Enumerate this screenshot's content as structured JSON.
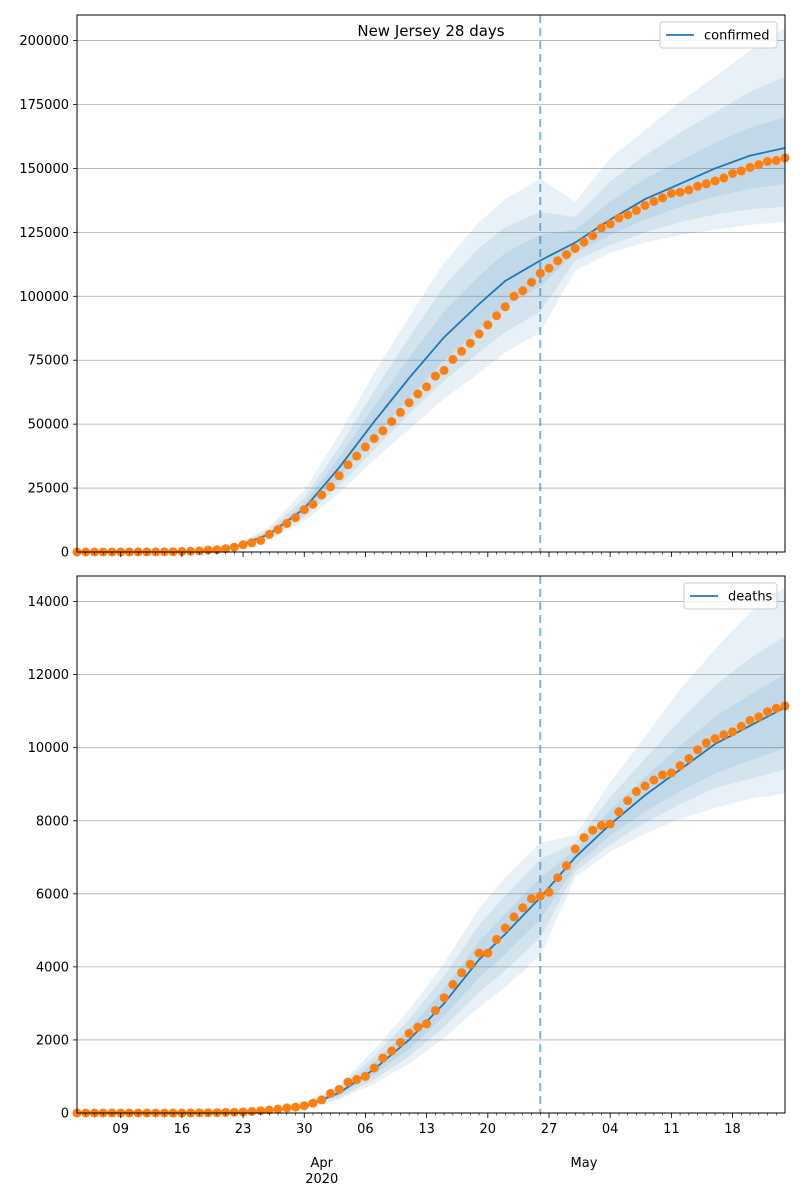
{
  "chart_data": [
    {
      "type": "line",
      "title": "New Jersey 28 days",
      "x_start": "2020-03-04",
      "x_end": "2020-05-24",
      "forecast_date": "2020-04-26",
      "ylim": [
        0,
        210000
      ],
      "y_ticks": [
        0,
        25000,
        50000,
        75000,
        100000,
        125000,
        150000,
        175000,
        200000
      ],
      "grid": "horizontal",
      "legend_position": "top-right",
      "series": [
        {
          "name": "confirmed",
          "color": "#1f77b4"
        }
      ],
      "model_dates": [
        "2020-03-18",
        "2020-03-22",
        "2020-03-26",
        "2020-03-30",
        "2020-04-03",
        "2020-04-07",
        "2020-04-11",
        "2020-04-15",
        "2020-04-19",
        "2020-04-22",
        "2020-04-26",
        "2020-04-30",
        "2020-05-04",
        "2020-05-08",
        "2020-05-12",
        "2020-05-16",
        "2020-05-20",
        "2020-05-24"
      ],
      "model_median": [
        500,
        1800,
        7000,
        17000,
        33000,
        51000,
        68000,
        84000,
        97000,
        106000,
        114000,
        121000,
        130000,
        138000,
        144000,
        150000,
        155000,
        158000
      ],
      "model_band_50": [
        [
          400,
          600
        ],
        [
          1500,
          2100
        ],
        [
          6200,
          7800
        ],
        [
          15000,
          19000
        ],
        [
          29000,
          37000
        ],
        [
          45000,
          57000
        ],
        [
          60000,
          76000
        ],
        [
          75000,
          94000
        ],
        [
          87000,
          108000
        ],
        [
          96000,
          117000
        ],
        [
          104000,
          124000
        ],
        [
          117000,
          126000
        ],
        [
          124000,
          137000
        ],
        [
          130000,
          146000
        ],
        [
          135000,
          153000
        ],
        [
          139000,
          160000
        ],
        [
          142000,
          166000
        ],
        [
          144000,
          170000
        ]
      ],
      "model_band_80": [
        [
          300,
          700
        ],
        [
          1300,
          2400
        ],
        [
          5500,
          8700
        ],
        [
          13500,
          21000
        ],
        [
          26000,
          41000
        ],
        [
          40000,
          63000
        ],
        [
          54000,
          84000
        ],
        [
          67000,
          104000
        ],
        [
          78000,
          119000
        ],
        [
          86000,
          127000
        ],
        [
          94000,
          133000
        ],
        [
          114000,
          131000
        ],
        [
          120000,
          145000
        ],
        [
          125000,
          155000
        ],
        [
          129000,
          164000
        ],
        [
          132000,
          172000
        ],
        [
          134000,
          180000
        ],
        [
          135000,
          186000
        ]
      ],
      "model_band_95": [
        [
          200,
          800
        ],
        [
          1100,
          2700
        ],
        [
          4800,
          9800
        ],
        [
          12000,
          24000
        ],
        [
          23000,
          46000
        ],
        [
          36000,
          70000
        ],
        [
          48000,
          92000
        ],
        [
          60000,
          113000
        ],
        [
          70000,
          129000
        ],
        [
          78000,
          138000
        ],
        [
          86000,
          146000
        ],
        [
          110000,
          137000
        ],
        [
          117000,
          154000
        ],
        [
          121000,
          165000
        ],
        [
          124000,
          176000
        ],
        [
          126000,
          186000
        ],
        [
          128000,
          196000
        ],
        [
          129000,
          205000
        ]
      ],
      "observed_dates": [
        "2020-03-04",
        "2020-03-05",
        "2020-03-06",
        "2020-03-07",
        "2020-03-08",
        "2020-03-09",
        "2020-03-10",
        "2020-03-11",
        "2020-03-12",
        "2020-03-13",
        "2020-03-14",
        "2020-03-15",
        "2020-03-16",
        "2020-03-17",
        "2020-03-18",
        "2020-03-19",
        "2020-03-20",
        "2020-03-21",
        "2020-03-22",
        "2020-03-23",
        "2020-03-24",
        "2020-03-25",
        "2020-03-26",
        "2020-03-27",
        "2020-03-28",
        "2020-03-29",
        "2020-03-30",
        "2020-03-31",
        "2020-04-01",
        "2020-04-02",
        "2020-04-03",
        "2020-04-04",
        "2020-04-05",
        "2020-04-06",
        "2020-04-07",
        "2020-04-08",
        "2020-04-09",
        "2020-04-10",
        "2020-04-11",
        "2020-04-12",
        "2020-04-13",
        "2020-04-14",
        "2020-04-15",
        "2020-04-16",
        "2020-04-17",
        "2020-04-18",
        "2020-04-19",
        "2020-04-20",
        "2020-04-21",
        "2020-04-22",
        "2020-04-23",
        "2020-04-24",
        "2020-04-25",
        "2020-04-26",
        "2020-04-27",
        "2020-04-28",
        "2020-04-29",
        "2020-04-30",
        "2020-05-01",
        "2020-05-02",
        "2020-05-03",
        "2020-05-04",
        "2020-05-05",
        "2020-05-06",
        "2020-05-07",
        "2020-05-08",
        "2020-05-09",
        "2020-05-10",
        "2020-05-11",
        "2020-05-12",
        "2020-05-13",
        "2020-05-14",
        "2020-05-15",
        "2020-05-16",
        "2020-05-17",
        "2020-05-18",
        "2020-05-19",
        "2020-05-20",
        "2020-05-21",
        "2020-05-22",
        "2020-05-23",
        "2020-05-24"
      ],
      "observed_values": [
        0,
        0,
        0,
        0,
        5,
        10,
        15,
        25,
        30,
        50,
        70,
        100,
        180,
        270,
        430,
        740,
        900,
        1300,
        1900,
        2800,
        3600,
        4500,
        6900,
        8800,
        11200,
        13400,
        16600,
        18700,
        22300,
        25500,
        29800,
        34100,
        37500,
        41100,
        44400,
        47400,
        51000,
        54600,
        58400,
        61800,
        64600,
        68800,
        71000,
        75300,
        78500,
        81600,
        85300,
        88800,
        92400,
        95900,
        100000,
        102200,
        105500,
        109000,
        111000,
        113900,
        116300,
        118700,
        121200,
        123700,
        126700,
        128300,
        130600,
        131900,
        133600,
        135500,
        137100,
        138500,
        140200,
        140700,
        141600,
        143000,
        144000,
        145100,
        146300,
        148000,
        149000,
        150400,
        151500,
        152700,
        153100,
        154100
      ]
    },
    {
      "type": "line",
      "x_start": "2020-03-04",
      "x_end": "2020-05-24",
      "forecast_date": "2020-04-26",
      "ylim": [
        0,
        14700
      ],
      "y_ticks": [
        0,
        2000,
        4000,
        6000,
        8000,
        10000,
        12000,
        14000
      ],
      "grid": "horizontal",
      "legend_position": "top-right",
      "series": [
        {
          "name": "deaths",
          "color": "#1f77b4"
        }
      ],
      "model_dates": [
        "2020-03-18",
        "2020-03-22",
        "2020-03-26",
        "2020-03-30",
        "2020-04-03",
        "2020-04-07",
        "2020-04-11",
        "2020-04-15",
        "2020-04-19",
        "2020-04-22",
        "2020-04-26",
        "2020-04-30",
        "2020-05-04",
        "2020-05-08",
        "2020-05-12",
        "2020-05-16",
        "2020-05-20",
        "2020-05-24"
      ],
      "model_median": [
        5,
        15,
        50,
        180,
        550,
        1200,
        2000,
        3000,
        4200,
        4900,
        5900,
        7000,
        7900,
        8700,
        9400,
        10100,
        10600,
        11100
      ],
      "model_band_50": [
        [
          4,
          7
        ],
        [
          12,
          18
        ],
        [
          40,
          60
        ],
        [
          160,
          210
        ],
        [
          480,
          620
        ],
        [
          1050,
          1400
        ],
        [
          1750,
          2300
        ],
        [
          2650,
          3400
        ],
        [
          3700,
          4700
        ],
        [
          4350,
          5450
        ],
        [
          5300,
          6450
        ],
        [
          6750,
          7200
        ],
        [
          7600,
          8300
        ],
        [
          8250,
          9200
        ],
        [
          8800,
          10050
        ],
        [
          9300,
          10850
        ],
        [
          9650,
          11450
        ],
        [
          10000,
          12000
        ]
      ],
      "model_band_80": [
        [
          3,
          9
        ],
        [
          10,
          22
        ],
        [
          33,
          72
        ],
        [
          140,
          245
        ],
        [
          420,
          700
        ],
        [
          920,
          1560
        ],
        [
          1550,
          2560
        ],
        [
          2350,
          3750
        ],
        [
          3300,
          5150
        ],
        [
          3900,
          5950
        ],
        [
          4800,
          6950
        ],
        [
          6600,
          7400
        ],
        [
          7350,
          8650
        ],
        [
          7950,
          9700
        ],
        [
          8450,
          10750
        ],
        [
          8900,
          11700
        ],
        [
          9150,
          12450
        ],
        [
          9400,
          13050
        ]
      ],
      "model_band_95": [
        [
          2,
          11
        ],
        [
          8,
          26
        ],
        [
          28,
          85
        ],
        [
          120,
          280
        ],
        [
          370,
          780
        ],
        [
          800,
          1730
        ],
        [
          1350,
          2830
        ],
        [
          2050,
          4100
        ],
        [
          2900,
          5600
        ],
        [
          3450,
          6450
        ],
        [
          4300,
          7400
        ],
        [
          6450,
          7600
        ],
        [
          7150,
          9050
        ],
        [
          7650,
          10300
        ],
        [
          8050,
          11600
        ],
        [
          8350,
          12700
        ],
        [
          8600,
          13700
        ],
        [
          8750,
          14400
        ]
      ],
      "observed_dates": [
        "2020-03-04",
        "2020-03-05",
        "2020-03-06",
        "2020-03-07",
        "2020-03-08",
        "2020-03-09",
        "2020-03-10",
        "2020-03-11",
        "2020-03-12",
        "2020-03-13",
        "2020-03-14",
        "2020-03-15",
        "2020-03-16",
        "2020-03-17",
        "2020-03-18",
        "2020-03-19",
        "2020-03-20",
        "2020-03-21",
        "2020-03-22",
        "2020-03-23",
        "2020-03-24",
        "2020-03-25",
        "2020-03-26",
        "2020-03-27",
        "2020-03-28",
        "2020-03-29",
        "2020-03-30",
        "2020-03-31",
        "2020-04-01",
        "2020-04-02",
        "2020-04-03",
        "2020-04-04",
        "2020-04-05",
        "2020-04-06",
        "2020-04-07",
        "2020-04-08",
        "2020-04-09",
        "2020-04-10",
        "2020-04-11",
        "2020-04-12",
        "2020-04-13",
        "2020-04-14",
        "2020-04-15",
        "2020-04-16",
        "2020-04-17",
        "2020-04-18",
        "2020-04-19",
        "2020-04-20",
        "2020-04-21",
        "2020-04-22",
        "2020-04-23",
        "2020-04-24",
        "2020-04-25",
        "2020-04-26",
        "2020-04-27",
        "2020-04-28",
        "2020-04-29",
        "2020-04-30",
        "2020-05-01",
        "2020-05-02",
        "2020-05-03",
        "2020-05-04",
        "2020-05-05",
        "2020-05-06",
        "2020-05-07",
        "2020-05-08",
        "2020-05-09",
        "2020-05-10",
        "2020-05-11",
        "2020-05-12",
        "2020-05-13",
        "2020-05-14",
        "2020-05-15",
        "2020-05-16",
        "2020-05-17",
        "2020-05-18",
        "2020-05-19",
        "2020-05-20",
        "2020-05-21",
        "2020-05-22",
        "2020-05-23",
        "2020-05-24"
      ],
      "observed_values": [
        0,
        0,
        0,
        0,
        0,
        0,
        0,
        0,
        0,
        0,
        0,
        0,
        1,
        3,
        5,
        9,
        11,
        16,
        20,
        27,
        44,
        62,
        81,
        108,
        140,
        161,
        198,
        267,
        355,
        537,
        646,
        846,
        917,
        1003,
        1232,
        1504,
        1700,
        1932,
        2183,
        2350,
        2443,
        2805,
        3156,
        3518,
        3840,
        4070,
        4377,
        4377,
        4753,
        5063,
        5368,
        5617,
        5863,
        5938,
        6044,
        6442,
        6770,
        7228,
        7538,
        7742,
        7871,
        7910,
        8244,
        8549,
        8801,
        8952,
        9116,
        9255,
        9310,
        9508,
        9702,
        9946,
        10138,
        10249,
        10356,
        10435,
        10586,
        10747,
        10843,
        10985,
        11081,
        11144
      ]
    }
  ],
  "x_axis": {
    "day_ticks": [
      "09",
      "16",
      "23",
      "30",
      "06",
      "13",
      "20",
      "27",
      "04",
      "11",
      "18"
    ],
    "day_tick_dates": [
      "2020-03-09",
      "2020-03-16",
      "2020-03-23",
      "2020-03-30",
      "2020-04-06",
      "2020-04-13",
      "2020-04-20",
      "2020-04-27",
      "2020-05-04",
      "2020-05-11",
      "2020-05-18"
    ],
    "month_labels": [
      {
        "label": "Apr",
        "year": "2020",
        "date": "2020-04-01"
      },
      {
        "label": "May",
        "year": "",
        "date": "2020-05-01"
      }
    ]
  },
  "colors": {
    "model_line": "#1f77b4",
    "band": "#1f77b4",
    "observed": "#ff7f0e",
    "grid": "#b0b0b0",
    "forecast_line": "#1f77b4"
  }
}
